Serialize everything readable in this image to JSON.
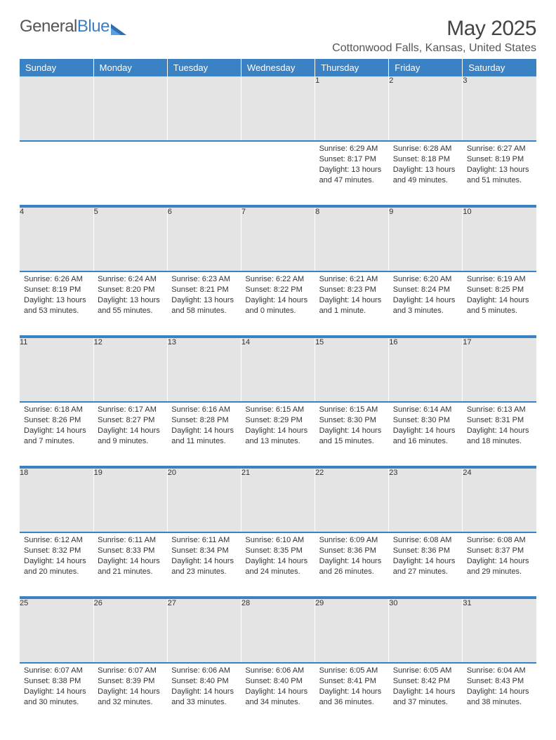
{
  "logo": {
    "text_gray": "General",
    "text_blue": "Blue"
  },
  "header": {
    "month_title": "May 2025",
    "location": "Cottonwood Falls, Kansas, United States"
  },
  "day_headers": [
    "Sunday",
    "Monday",
    "Tuesday",
    "Wednesday",
    "Thursday",
    "Friday",
    "Saturday"
  ],
  "colors": {
    "header_bg": "#3b82c4",
    "header_text": "#ffffff",
    "daynum_bg": "#e4e4e4",
    "rule": "#3b82c4",
    "body_text": "#333333",
    "title_text": "#444444"
  },
  "weeks": [
    [
      null,
      null,
      null,
      null,
      {
        "n": "1",
        "sr": "Sunrise: 6:29 AM",
        "ss": "Sunset: 8:17 PM",
        "d1": "Daylight: 13 hours",
        "d2": "and 47 minutes."
      },
      {
        "n": "2",
        "sr": "Sunrise: 6:28 AM",
        "ss": "Sunset: 8:18 PM",
        "d1": "Daylight: 13 hours",
        "d2": "and 49 minutes."
      },
      {
        "n": "3",
        "sr": "Sunrise: 6:27 AM",
        "ss": "Sunset: 8:19 PM",
        "d1": "Daylight: 13 hours",
        "d2": "and 51 minutes."
      }
    ],
    [
      {
        "n": "4",
        "sr": "Sunrise: 6:26 AM",
        "ss": "Sunset: 8:19 PM",
        "d1": "Daylight: 13 hours",
        "d2": "and 53 minutes."
      },
      {
        "n": "5",
        "sr": "Sunrise: 6:24 AM",
        "ss": "Sunset: 8:20 PM",
        "d1": "Daylight: 13 hours",
        "d2": "and 55 minutes."
      },
      {
        "n": "6",
        "sr": "Sunrise: 6:23 AM",
        "ss": "Sunset: 8:21 PM",
        "d1": "Daylight: 13 hours",
        "d2": "and 58 minutes."
      },
      {
        "n": "7",
        "sr": "Sunrise: 6:22 AM",
        "ss": "Sunset: 8:22 PM",
        "d1": "Daylight: 14 hours",
        "d2": "and 0 minutes."
      },
      {
        "n": "8",
        "sr": "Sunrise: 6:21 AM",
        "ss": "Sunset: 8:23 PM",
        "d1": "Daylight: 14 hours",
        "d2": "and 1 minute."
      },
      {
        "n": "9",
        "sr": "Sunrise: 6:20 AM",
        "ss": "Sunset: 8:24 PM",
        "d1": "Daylight: 14 hours",
        "d2": "and 3 minutes."
      },
      {
        "n": "10",
        "sr": "Sunrise: 6:19 AM",
        "ss": "Sunset: 8:25 PM",
        "d1": "Daylight: 14 hours",
        "d2": "and 5 minutes."
      }
    ],
    [
      {
        "n": "11",
        "sr": "Sunrise: 6:18 AM",
        "ss": "Sunset: 8:26 PM",
        "d1": "Daylight: 14 hours",
        "d2": "and 7 minutes."
      },
      {
        "n": "12",
        "sr": "Sunrise: 6:17 AM",
        "ss": "Sunset: 8:27 PM",
        "d1": "Daylight: 14 hours",
        "d2": "and 9 minutes."
      },
      {
        "n": "13",
        "sr": "Sunrise: 6:16 AM",
        "ss": "Sunset: 8:28 PM",
        "d1": "Daylight: 14 hours",
        "d2": "and 11 minutes."
      },
      {
        "n": "14",
        "sr": "Sunrise: 6:15 AM",
        "ss": "Sunset: 8:29 PM",
        "d1": "Daylight: 14 hours",
        "d2": "and 13 minutes."
      },
      {
        "n": "15",
        "sr": "Sunrise: 6:15 AM",
        "ss": "Sunset: 8:30 PM",
        "d1": "Daylight: 14 hours",
        "d2": "and 15 minutes."
      },
      {
        "n": "16",
        "sr": "Sunrise: 6:14 AM",
        "ss": "Sunset: 8:30 PM",
        "d1": "Daylight: 14 hours",
        "d2": "and 16 minutes."
      },
      {
        "n": "17",
        "sr": "Sunrise: 6:13 AM",
        "ss": "Sunset: 8:31 PM",
        "d1": "Daylight: 14 hours",
        "d2": "and 18 minutes."
      }
    ],
    [
      {
        "n": "18",
        "sr": "Sunrise: 6:12 AM",
        "ss": "Sunset: 8:32 PM",
        "d1": "Daylight: 14 hours",
        "d2": "and 20 minutes."
      },
      {
        "n": "19",
        "sr": "Sunrise: 6:11 AM",
        "ss": "Sunset: 8:33 PM",
        "d1": "Daylight: 14 hours",
        "d2": "and 21 minutes."
      },
      {
        "n": "20",
        "sr": "Sunrise: 6:11 AM",
        "ss": "Sunset: 8:34 PM",
        "d1": "Daylight: 14 hours",
        "d2": "and 23 minutes."
      },
      {
        "n": "21",
        "sr": "Sunrise: 6:10 AM",
        "ss": "Sunset: 8:35 PM",
        "d1": "Daylight: 14 hours",
        "d2": "and 24 minutes."
      },
      {
        "n": "22",
        "sr": "Sunrise: 6:09 AM",
        "ss": "Sunset: 8:36 PM",
        "d1": "Daylight: 14 hours",
        "d2": "and 26 minutes."
      },
      {
        "n": "23",
        "sr": "Sunrise: 6:08 AM",
        "ss": "Sunset: 8:36 PM",
        "d1": "Daylight: 14 hours",
        "d2": "and 27 minutes."
      },
      {
        "n": "24",
        "sr": "Sunrise: 6:08 AM",
        "ss": "Sunset: 8:37 PM",
        "d1": "Daylight: 14 hours",
        "d2": "and 29 minutes."
      }
    ],
    [
      {
        "n": "25",
        "sr": "Sunrise: 6:07 AM",
        "ss": "Sunset: 8:38 PM",
        "d1": "Daylight: 14 hours",
        "d2": "and 30 minutes."
      },
      {
        "n": "26",
        "sr": "Sunrise: 6:07 AM",
        "ss": "Sunset: 8:39 PM",
        "d1": "Daylight: 14 hours",
        "d2": "and 32 minutes."
      },
      {
        "n": "27",
        "sr": "Sunrise: 6:06 AM",
        "ss": "Sunset: 8:40 PM",
        "d1": "Daylight: 14 hours",
        "d2": "and 33 minutes."
      },
      {
        "n": "28",
        "sr": "Sunrise: 6:06 AM",
        "ss": "Sunset: 8:40 PM",
        "d1": "Daylight: 14 hours",
        "d2": "and 34 minutes."
      },
      {
        "n": "29",
        "sr": "Sunrise: 6:05 AM",
        "ss": "Sunset: 8:41 PM",
        "d1": "Daylight: 14 hours",
        "d2": "and 36 minutes."
      },
      {
        "n": "30",
        "sr": "Sunrise: 6:05 AM",
        "ss": "Sunset: 8:42 PM",
        "d1": "Daylight: 14 hours",
        "d2": "and 37 minutes."
      },
      {
        "n": "31",
        "sr": "Sunrise: 6:04 AM",
        "ss": "Sunset: 8:43 PM",
        "d1": "Daylight: 14 hours",
        "d2": "and 38 minutes."
      }
    ]
  ]
}
